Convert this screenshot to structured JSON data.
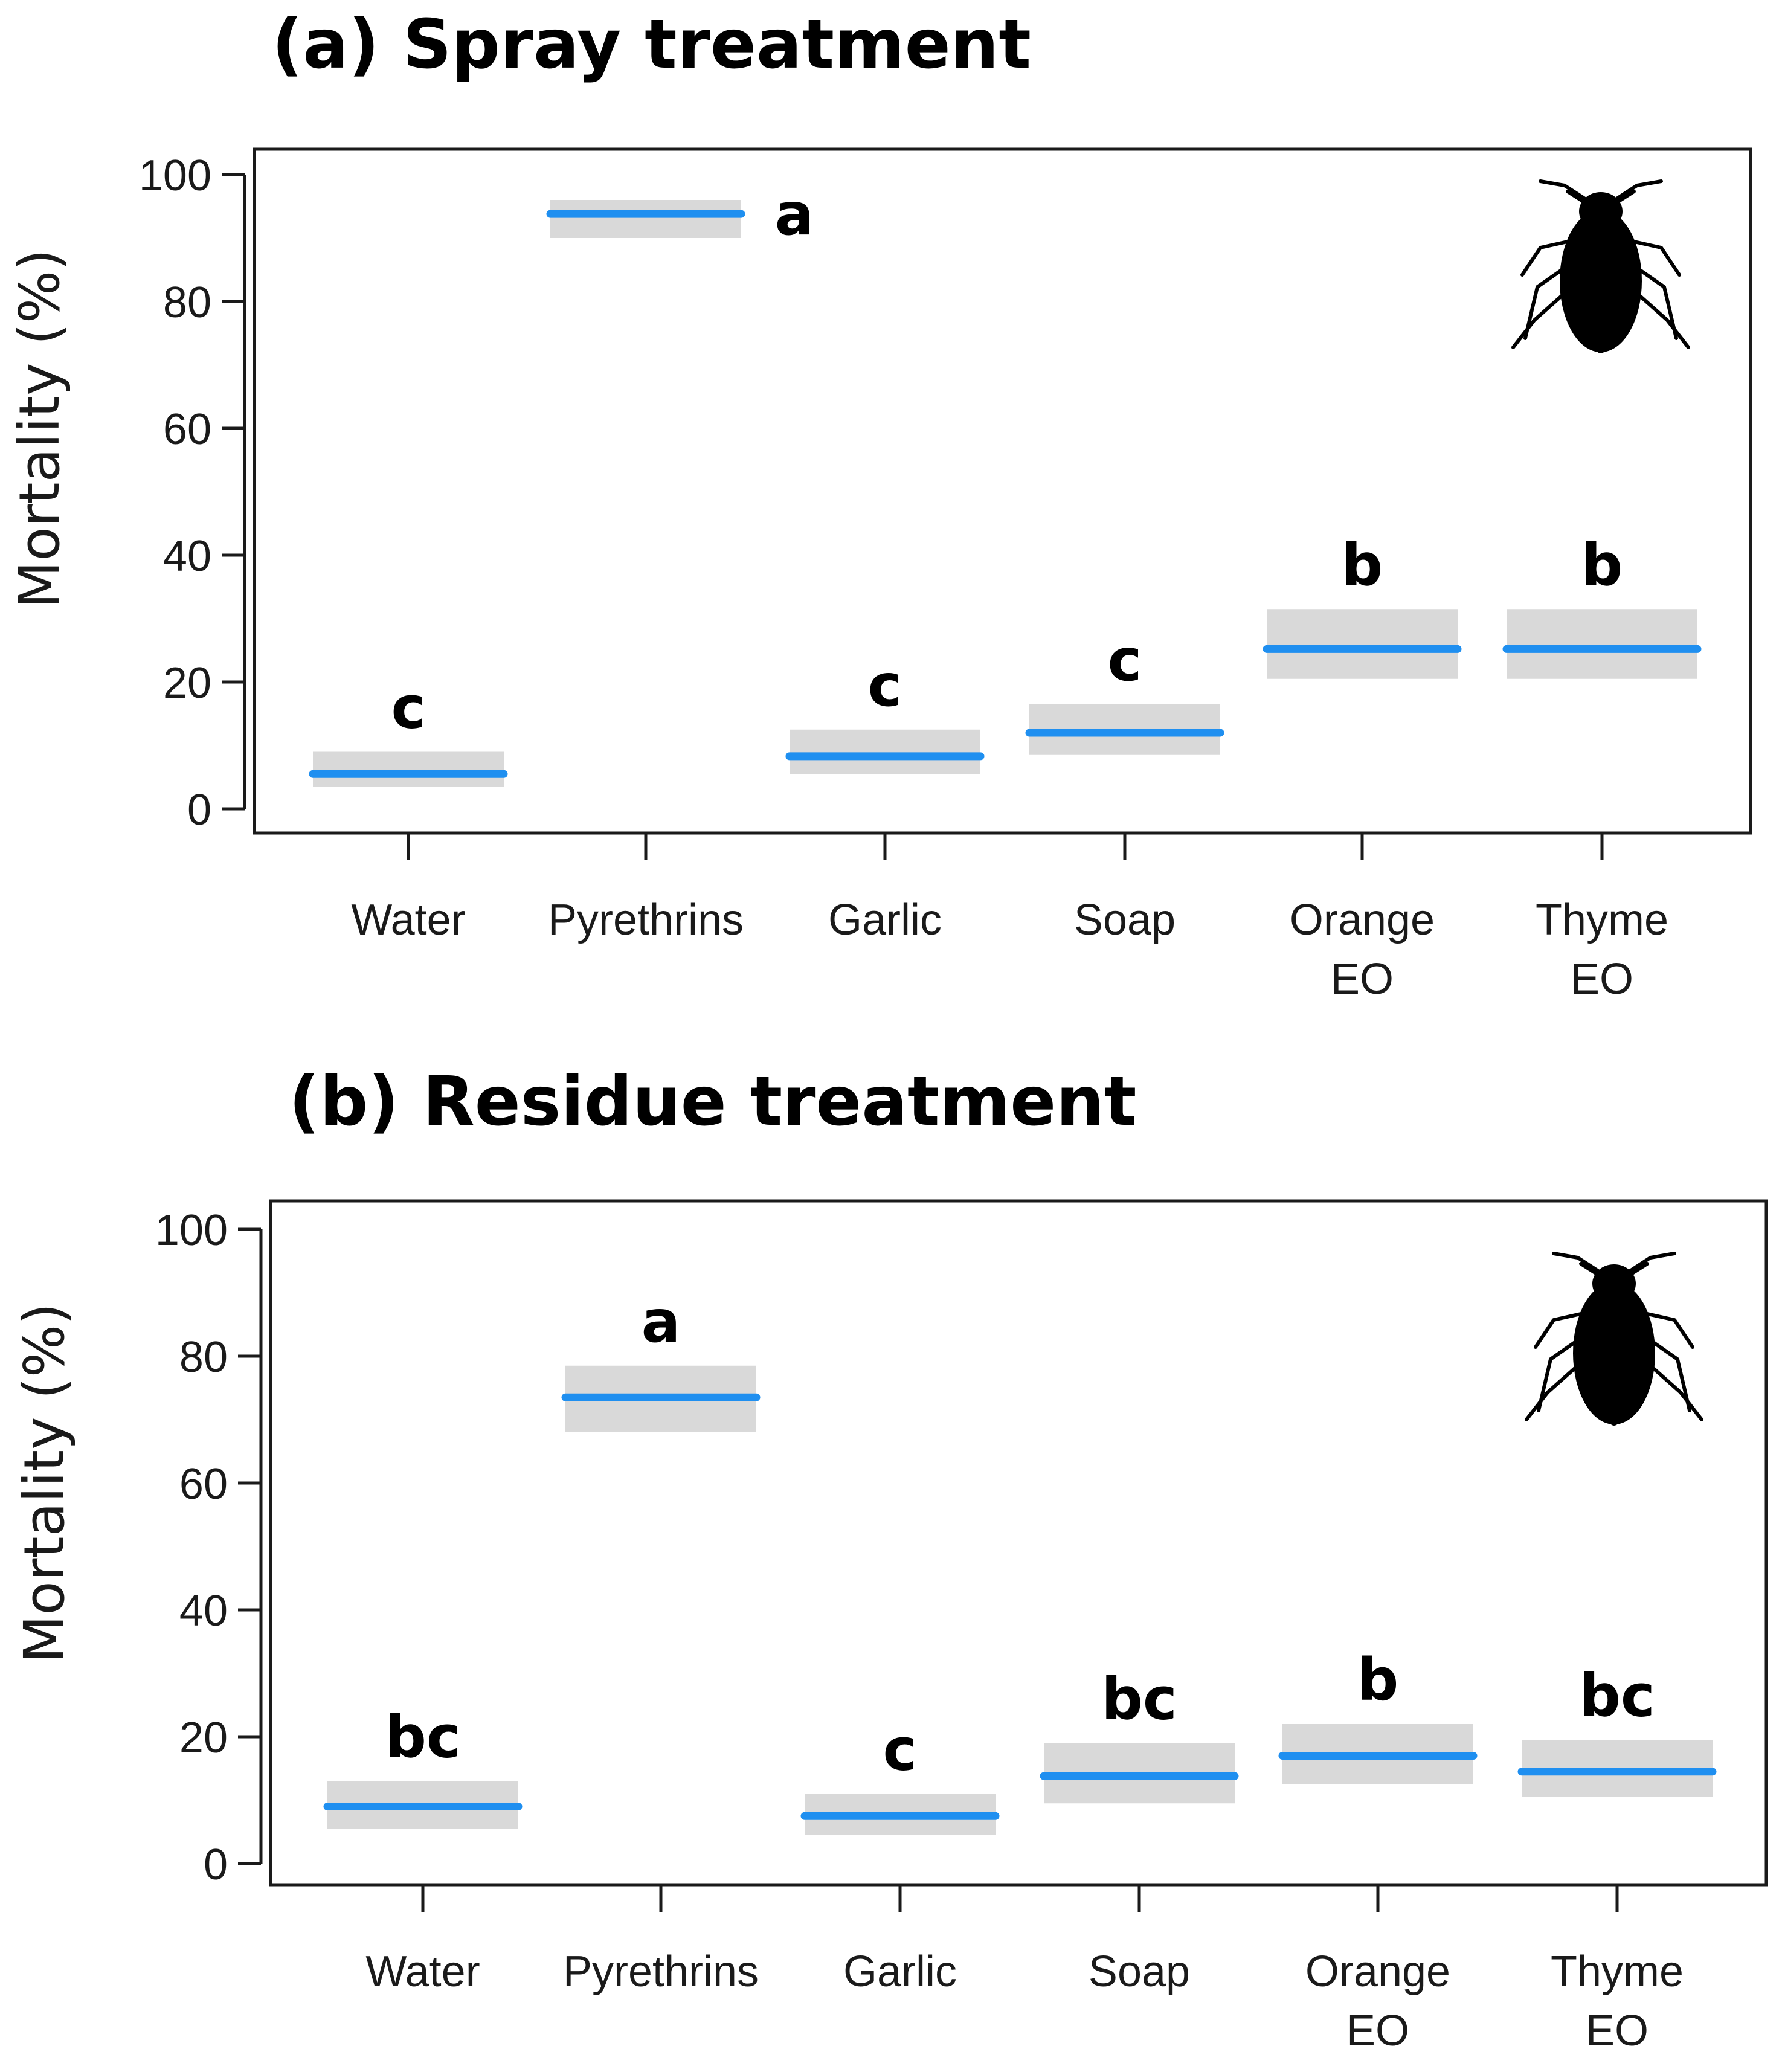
{
  "chart_data": [
    {
      "type": "interval",
      "panel": "a",
      "title": "(a) Spray treatment",
      "ylabel": "Mortality (%)",
      "xlabel": "",
      "ylim": [
        0,
        100
      ],
      "yticks": [
        0,
        20,
        40,
        60,
        80,
        100
      ],
      "categories": [
        "Water",
        "Pyrethrins",
        "Garlic",
        "Soap",
        "Orange EO",
        "Thyme EO"
      ],
      "category_lines": [
        [
          "Water"
        ],
        [
          "Pyrethrins"
        ],
        [
          "Garlic"
        ],
        [
          "Soap"
        ],
        [
          "Orange",
          "EO"
        ],
        [
          "Thyme",
          "EO"
        ]
      ],
      "mean": [
        5.5,
        93.8,
        8.3,
        12.0,
        25.2,
        25.2
      ],
      "ci_lower": [
        3.5,
        90.0,
        5.5,
        8.5,
        20.5,
        20.5
      ],
      "ci_upper": [
        9.0,
        96.0,
        12.5,
        16.5,
        31.5,
        31.5
      ],
      "letters": [
        "c",
        "a",
        "c",
        "c",
        "b",
        "b"
      ]
    },
    {
      "type": "interval",
      "panel": "b",
      "title": "(b) Residue treatment",
      "ylabel": "Mortality (%)",
      "xlabel": "",
      "ylim": [
        0,
        100
      ],
      "yticks": [
        0,
        20,
        40,
        60,
        80,
        100
      ],
      "categories": [
        "Water",
        "Pyrethrins",
        "Garlic",
        "Soap",
        "Orange EO",
        "Thyme EO"
      ],
      "category_lines": [
        [
          "Water"
        ],
        [
          "Pyrethrins"
        ],
        [
          "Garlic"
        ],
        [
          "Soap"
        ],
        [
          "Orange",
          "EO"
        ],
        [
          "Thyme",
          "EO"
        ]
      ],
      "mean": [
        9.0,
        73.5,
        7.5,
        13.8,
        17.0,
        14.5
      ],
      "ci_lower": [
        5.5,
        68.0,
        4.5,
        9.5,
        12.5,
        10.5
      ],
      "ci_upper": [
        13.0,
        78.5,
        11.0,
        19.0,
        22.0,
        19.5
      ],
      "letters": [
        "bc",
        "a",
        "c",
        "bc",
        "b",
        "bc"
      ]
    }
  ],
  "colors": {
    "mean_line": "#1f8ff0",
    "interval_fill": "#d9d9d9",
    "axis": "#1a1a1a",
    "text": "#000000"
  },
  "icons": [
    "aphid-silhouette-icon"
  ]
}
